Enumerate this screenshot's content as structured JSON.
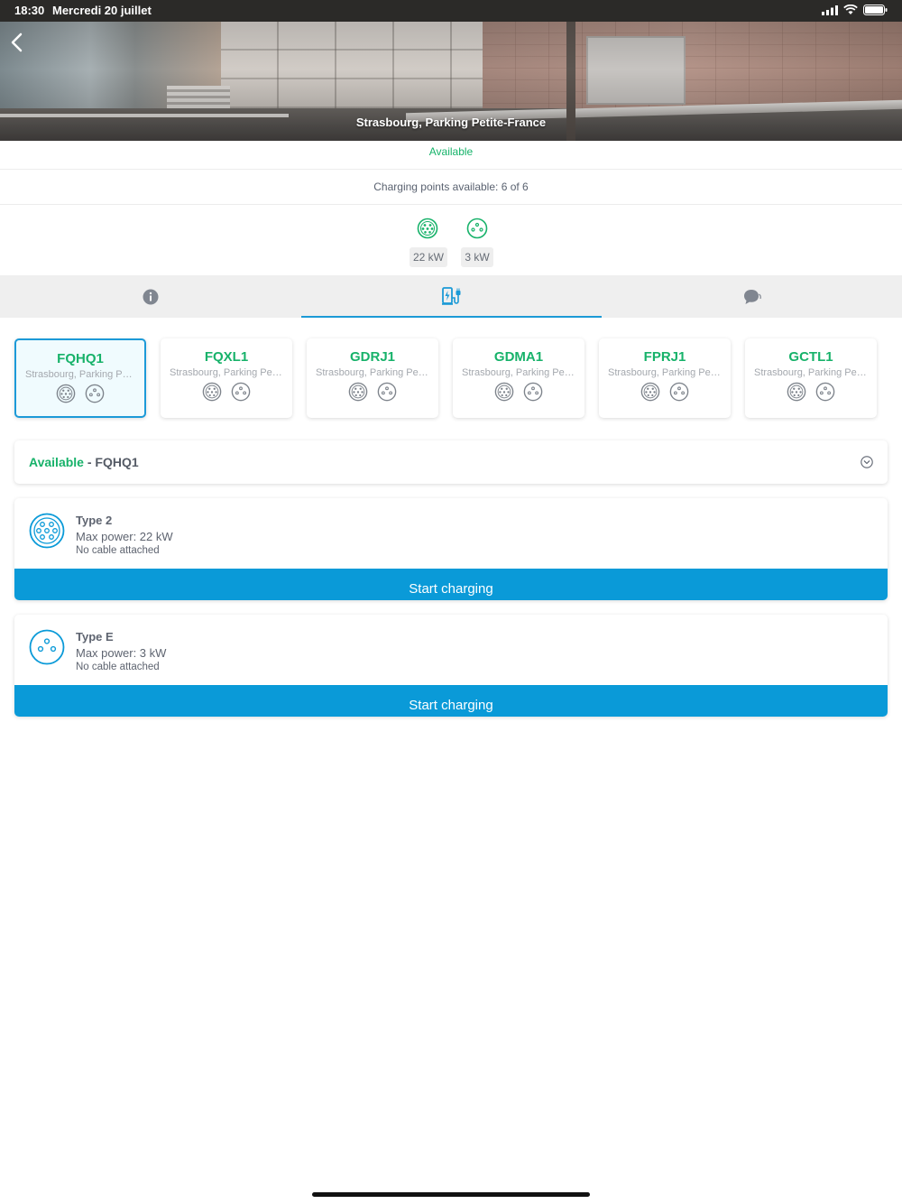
{
  "status_bar": {
    "time": "18:30",
    "date": "Mercredi 20 juillet"
  },
  "header": {
    "title": "Strasbourg, Parking Petite-France",
    "status": "Available"
  },
  "availability": {
    "text": "Charging points available: 6 of 6"
  },
  "power_options": [
    {
      "label": "22 kW",
      "icon": "type2-plug-icon"
    },
    {
      "label": "3 kW",
      "icon": "type-e-plug-icon"
    }
  ],
  "tabs": [
    {
      "name": "info",
      "icon": "info-icon"
    },
    {
      "name": "charging",
      "icon": "charging-station-icon",
      "active": true
    },
    {
      "name": "chat",
      "icon": "chat-icon"
    }
  ],
  "stations": [
    {
      "code": "FQHQ1",
      "location": "Strasbourg, Parking Petite-France"
    },
    {
      "code": "FQXL1",
      "location": "Strasbourg, Parking Petite-France"
    },
    {
      "code": "GDRJ1",
      "location": "Strasbourg, Parking Petite-France"
    },
    {
      "code": "GDMA1",
      "location": "Strasbourg, Parking Petite-France"
    },
    {
      "code": "FPRJ1",
      "location": "Strasbourg, Parking Petite-France"
    },
    {
      "code": "GCTL1",
      "location": "Strasbourg, Parking Petite-France"
    }
  ],
  "selected": {
    "status": "Available",
    "separator": "-",
    "code": "FQHQ1"
  },
  "connectors": [
    {
      "type": "Type 2",
      "power": "Max power: 22 kW",
      "cable": "No cable attached",
      "button": "Start charging",
      "icon": "type2-plug-icon"
    },
    {
      "type": "Type E",
      "power": "Max power: 3 kW",
      "cable": "No cable attached",
      "button": "Start charging",
      "icon": "type-e-plug-icon"
    }
  ],
  "colors": {
    "accent": "#0a9ad8",
    "available": "#17b26a",
    "text": "#5e6470"
  }
}
